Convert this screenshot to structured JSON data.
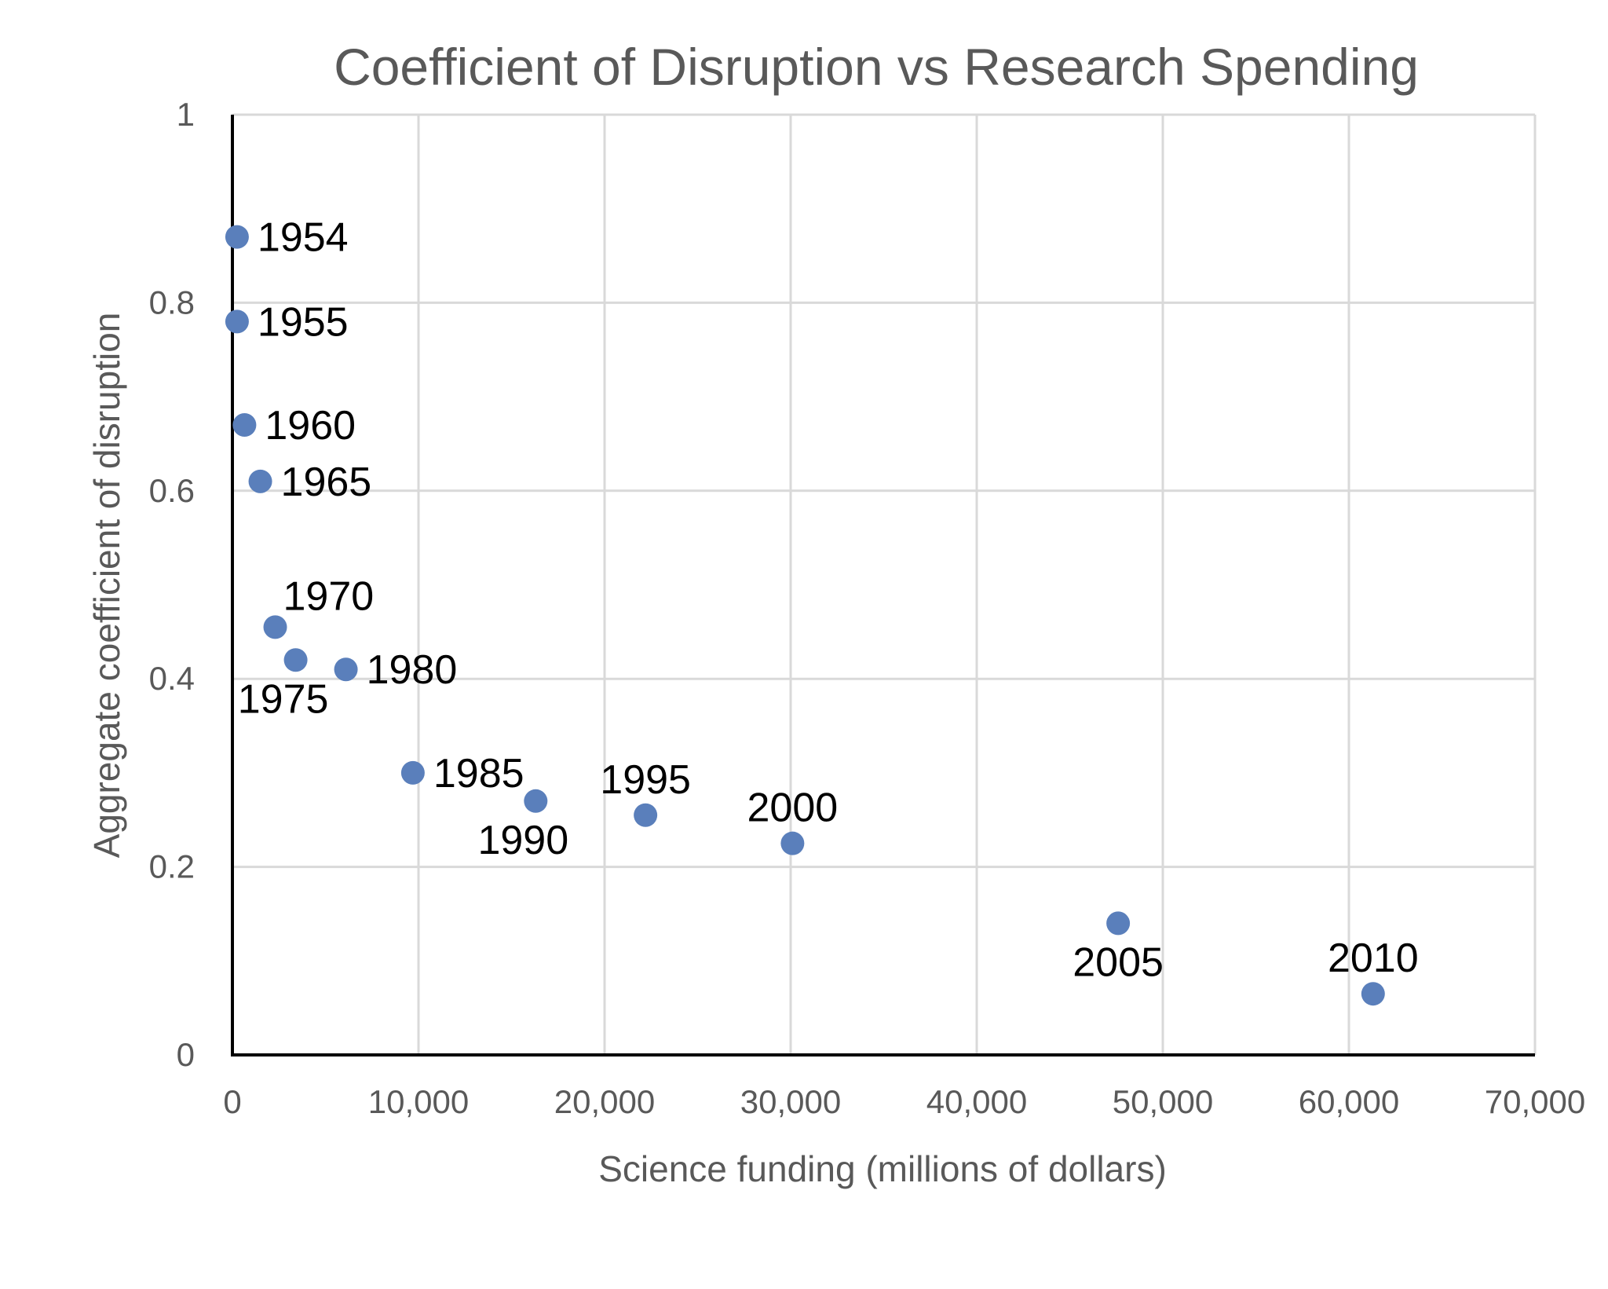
{
  "chart_data": {
    "type": "scatter",
    "title": "Coefficient of Disruption vs Research Spending",
    "xlabel": "Science funding (millions of dollars)",
    "ylabel": "Aggregate coefficient of disruption",
    "xlim": [
      0,
      70000
    ],
    "ylim": [
      0,
      1
    ],
    "xticks": [
      0,
      10000,
      20000,
      30000,
      40000,
      50000,
      60000,
      70000
    ],
    "xtick_labels": [
      "0",
      "10,000",
      "20,000",
      "30,000",
      "40,000",
      "50,000",
      "60,000",
      "70,000"
    ],
    "yticks": [
      0,
      0.2,
      0.4,
      0.6,
      0.8,
      1
    ],
    "ytick_labels": [
      "0",
      "0.2",
      "0.4",
      "0.6",
      "0.8",
      "1"
    ],
    "grid": true,
    "marker_color": "#5a7fbb",
    "points": [
      {
        "label": "1954",
        "x": 250,
        "y": 0.87,
        "label_position": "right"
      },
      {
        "label": "1955",
        "x": 250,
        "y": 0.78,
        "label_position": "right"
      },
      {
        "label": "1960",
        "x": 650,
        "y": 0.67,
        "label_position": "right"
      },
      {
        "label": "1965",
        "x": 1500,
        "y": 0.61,
        "label_position": "right"
      },
      {
        "label": "1970",
        "x": 2300,
        "y": 0.455,
        "label_position": "above-right"
      },
      {
        "label": "1975",
        "x": 3400,
        "y": 0.42,
        "label_position": "below"
      },
      {
        "label": "1980",
        "x": 6100,
        "y": 0.41,
        "label_position": "right"
      },
      {
        "label": "1985",
        "x": 9700,
        "y": 0.3,
        "label_position": "right"
      },
      {
        "label": "1990",
        "x": 16300,
        "y": 0.27,
        "label_position": "below"
      },
      {
        "label": "1995",
        "x": 22200,
        "y": 0.255,
        "label_position": "above"
      },
      {
        "label": "2000",
        "x": 30100,
        "y": 0.225,
        "label_position": "above"
      },
      {
        "label": "2005",
        "x": 47600,
        "y": 0.14,
        "label_position": "below"
      },
      {
        "label": "2010",
        "x": 61300,
        "y": 0.065,
        "label_position": "above"
      }
    ]
  }
}
